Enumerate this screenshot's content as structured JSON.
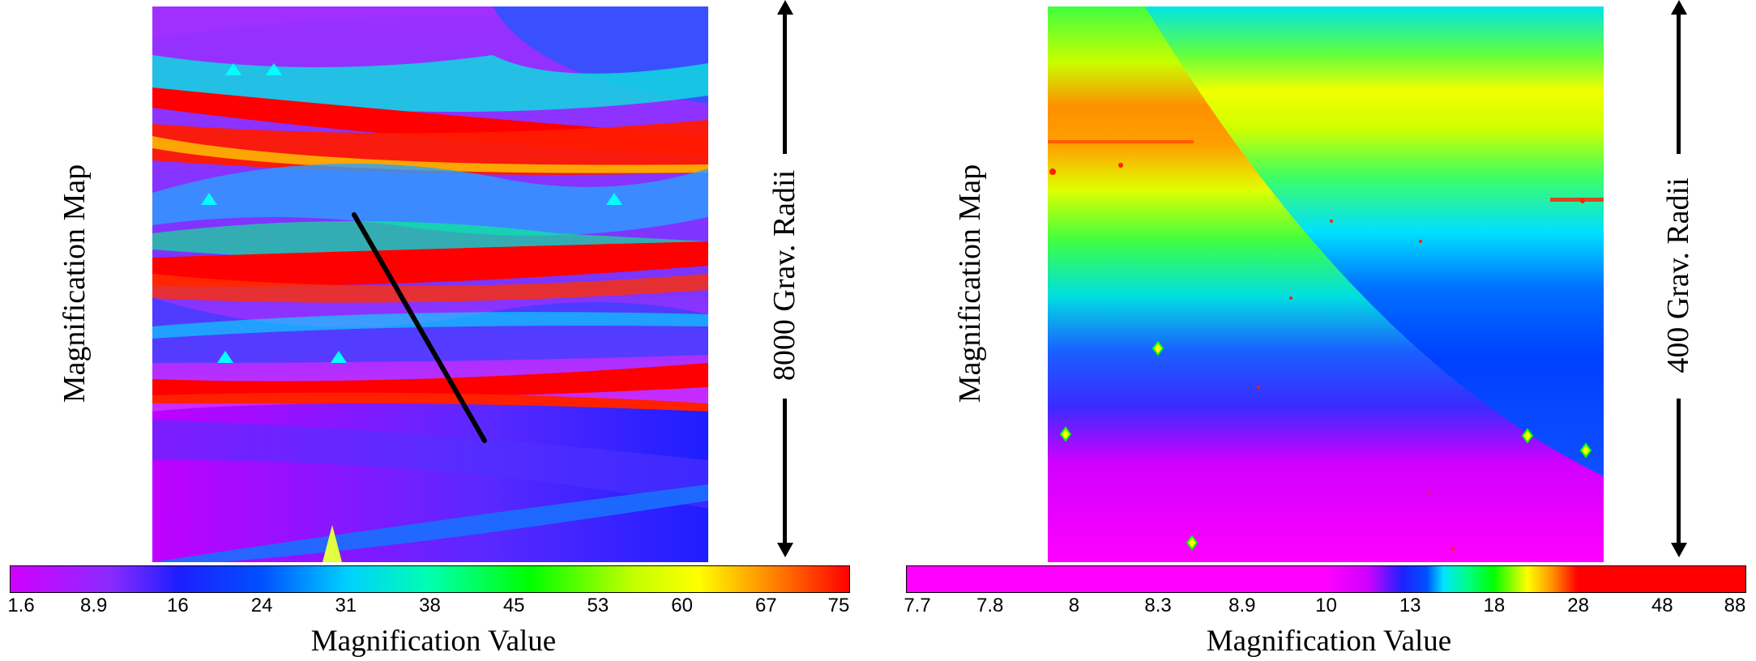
{
  "panels": [
    {
      "side_label": "Magnification Map",
      "scale_label": "8000 Grav. Radii",
      "colorbar": {
        "ticks": [
          "1.6",
          "8.9",
          "16",
          "24",
          "31",
          "38",
          "45",
          "53",
          "60",
          "67",
          "75"
        ],
        "title": "Magnification Value"
      }
    },
    {
      "side_label": "Magnification Map",
      "scale_label": "400 Grav. Radii",
      "colorbar": {
        "ticks": [
          "7.7",
          "7.8",
          "8",
          "8.3",
          "8.9",
          "10",
          "13",
          "18",
          "28",
          "48",
          "88"
        ],
        "title": "Magnification Value"
      }
    }
  ],
  "colors": {
    "magenta": "#ff00ff",
    "purple": "#8a2be2",
    "blue": "#1e1eff",
    "cyan": "#00e5ff",
    "green": "#00ff00",
    "yellow": "#ffff00",
    "red": "#ff0000"
  }
}
